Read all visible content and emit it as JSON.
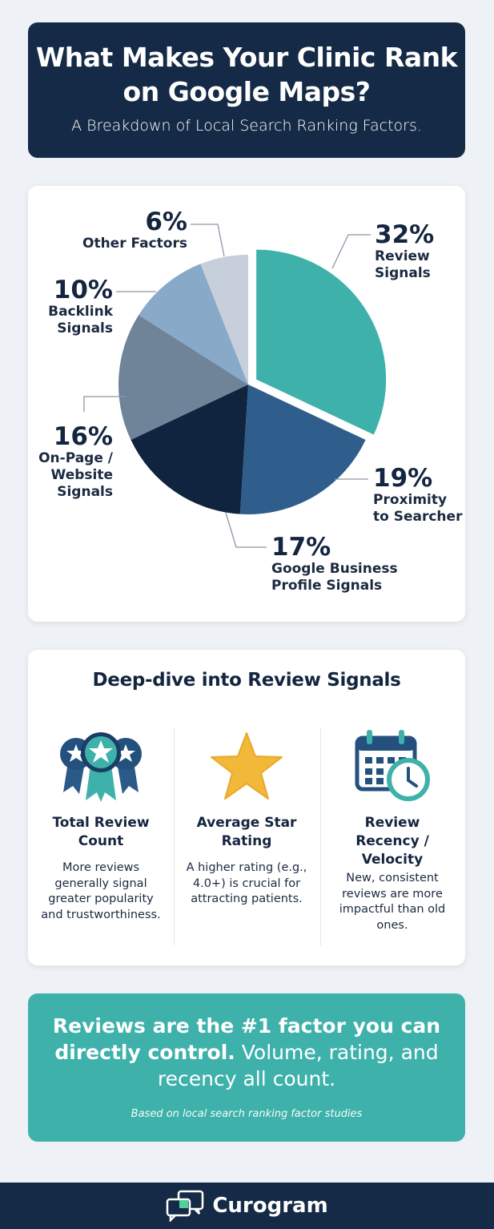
{
  "header": {
    "title": "What Makes Your Clinic Rank on Google Maps?",
    "subtitle": "A Breakdown of Local Search Ranking Factors."
  },
  "chart_data": {
    "type": "pie",
    "slices": [
      {
        "label": "Review Signals",
        "value": 32,
        "display": "32%",
        "color": "#3eb1ab",
        "exploded": true
      },
      {
        "label": "Proximity to Searcher",
        "value": 19,
        "display": "19%",
        "color": "#2f5d8c"
      },
      {
        "label": "Google Business Profile Signals",
        "value": 17,
        "display": "17%",
        "color": "#10233f"
      },
      {
        "label": "On-Page / Website Signals",
        "value": 16,
        "display": "16%",
        "color": "#6f8399"
      },
      {
        "label": "Backlink Signals",
        "value": 10,
        "display": "10%",
        "color": "#88a9c8"
      },
      {
        "label": "Other Factors",
        "value": 6,
        "display": "6%",
        "color": "#c6cfdb"
      }
    ]
  },
  "reviews": {
    "title": "Deep-dive into Review Signals",
    "items": [
      {
        "icon": "award-ribbons-icon",
        "title": "Total Review Count",
        "desc": "More reviews generally signal greater popularity and trustworthiness."
      },
      {
        "icon": "star-icon",
        "title": "Average Star Rating",
        "desc": "A higher rating (e.g., 4.0+) is crucial for attracting patients."
      },
      {
        "icon": "calendar-clock-icon",
        "title": "Review Recency / Velocity",
        "desc": "New, consistent reviews are more impactful than old ones."
      }
    ]
  },
  "cta": {
    "bold": "Reviews are the #1 factor you can directly control.",
    "rest": " Volume, rating, and recency all count.",
    "footnote": "Based on local search ranking factor studies"
  },
  "footer": {
    "brand": "Curogram",
    "logo_icon": "chat-bubbles-icon"
  },
  "colors": {
    "navy": "#152a46",
    "teal": "#3eb1ab",
    "background": "#eef1f6"
  }
}
